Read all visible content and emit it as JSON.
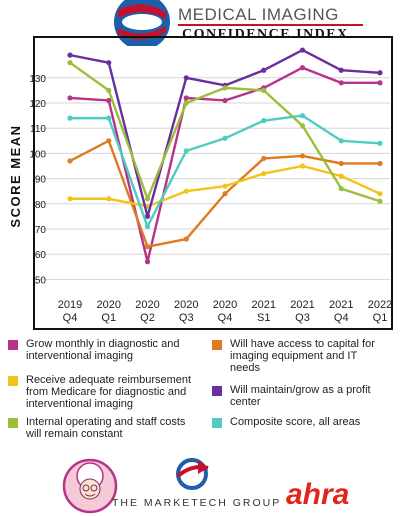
{
  "header": {
    "title": "MEDICAL IMAGING",
    "subtitle": "CONFIDENCE INDEX"
  },
  "colors": {
    "magenta": "#b5338a",
    "orange": "#e07a20",
    "yellow": "#f2c318",
    "purple": "#6a2ea0",
    "green": "#9cbf3a",
    "teal": "#4fcbc2",
    "ahra_red": "#e1251b"
  },
  "chart_data": {
    "type": "line",
    "ylabel": "SCORE MEAN",
    "xlabel": "",
    "ylim": [
      45,
      145
    ],
    "yticks": [
      50,
      60,
      70,
      80,
      90,
      100,
      110,
      120,
      130
    ],
    "categories": [
      [
        "2019",
        "Q4"
      ],
      [
        "2020",
        "Q1"
      ],
      [
        "2020",
        "Q2"
      ],
      [
        "2020",
        "Q3"
      ],
      [
        "2020",
        "Q4"
      ],
      [
        "2021",
        "S1"
      ],
      [
        "2021",
        "Q3"
      ],
      [
        "2021",
        "Q4"
      ],
      [
        "2022",
        "Q1"
      ]
    ],
    "grid": true,
    "series": [
      {
        "name": "Grow monthly in diagnostic and interventional imaging",
        "color": "#b5338a",
        "values": [
          122,
          121,
          57,
          122,
          121,
          126,
          134,
          128,
          128
        ]
      },
      {
        "name": "Will have access to capital for imaging equipment and IT needs",
        "color": "#e07a20",
        "values": [
          97,
          105,
          63,
          66,
          84,
          98,
          99,
          96,
          96
        ]
      },
      {
        "name": "Receive adequate reimbursement from Medicare for diagnostic and interventional imaging",
        "color": "#f2c318",
        "values": [
          82,
          82,
          79,
          85,
          87,
          92,
          95,
          91,
          84
        ]
      },
      {
        "name": "Will maintain/grow as a profit center",
        "color": "#6a2ea0",
        "values": [
          139,
          136,
          75,
          130,
          127,
          133,
          141,
          133,
          132
        ]
      },
      {
        "name": "Internal operating and staff costs will remain constant",
        "color": "#9cbf3a",
        "values": [
          136,
          125,
          82,
          120,
          126,
          125,
          111,
          86,
          81
        ]
      },
      {
        "name": "Composite score, all areas",
        "color": "#4fcbc2",
        "values": [
          114,
          114,
          71,
          101,
          106,
          113,
          115,
          105,
          104
        ]
      }
    ]
  },
  "legend": [
    {
      "text": "Grow monthly in diagnostic and interventional imaging",
      "color": "#b5338a"
    },
    {
      "text": "Will have access to capital for imaging equipment and IT needs",
      "color": "#e07a20"
    },
    {
      "text": "Receive adequate reimbursement from Medicare for diagnostic and interventional imaging",
      "color": "#f2c318"
    },
    {
      "text": "Will maintain/grow as a profit center",
      "color": "#6a2ea0"
    },
    {
      "text": "Internal operating and staff costs will remain constant",
      "color": "#9cbf3a"
    },
    {
      "text": "Composite score, all areas",
      "color": "#4fcbc2"
    }
  ],
  "footer": {
    "marketech": "THE MARKETECH GROUP",
    "ahra": "ahra"
  }
}
